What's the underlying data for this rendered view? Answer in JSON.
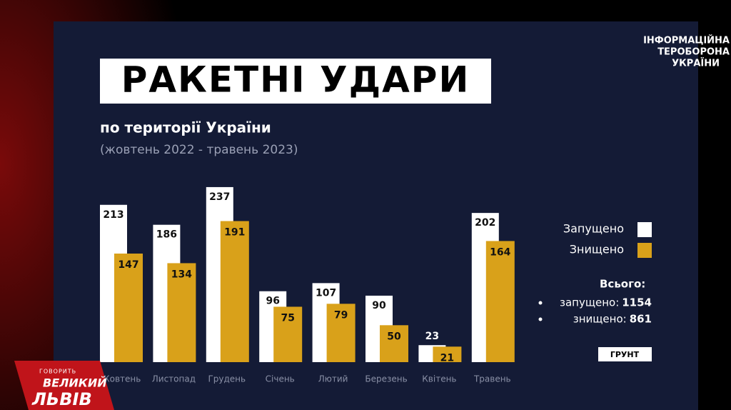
{
  "chart_data": {
    "type": "bar",
    "title": "РАКЕТНІ УДАРИ",
    "subtitle": "по території України",
    "date_range": "(жовтень 2022 - травень 2023)",
    "categories": [
      "Жовтень",
      "Листопад",
      "Грудень",
      "Січень",
      "Лютий",
      "Березень",
      "Квітень",
      "Травень"
    ],
    "series": [
      {
        "name": "Запущено",
        "color": "#ffffff",
        "values": [
          213,
          186,
          237,
          96,
          107,
          90,
          23,
          202
        ]
      },
      {
        "name": "Знищено",
        "color": "#d9a11a",
        "values": [
          147,
          134,
          191,
          75,
          79,
          50,
          21,
          164
        ]
      }
    ]
  },
  "totals": {
    "title": "Всього:",
    "items": [
      {
        "label": "запущено:",
        "value": 1154
      },
      {
        "label": "знищено:",
        "value": 861
      }
    ]
  },
  "source_logo": "ГРУНТ",
  "corner_logo": [
    "ІНФОРМАЦІЙНА",
    "ТЕРОБОРОНА",
    "УКРАЇНИ"
  ],
  "channel_logo": [
    "ГОВОРИТЬ",
    "ВЕЛИКИЙ",
    "ЛЬВІВ"
  ]
}
